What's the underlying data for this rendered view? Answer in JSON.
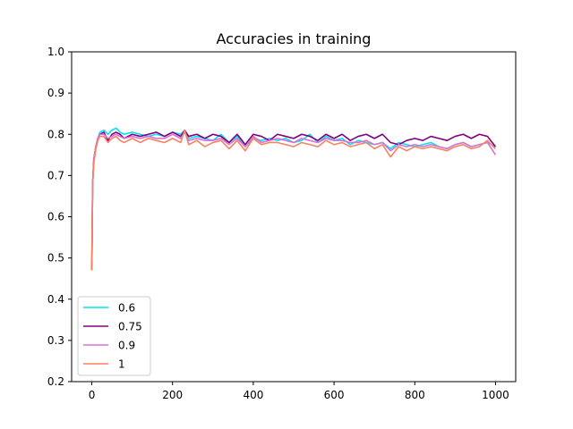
{
  "chart_data": {
    "type": "line",
    "title": "Accuracies in training",
    "xlabel": "",
    "ylabel": "",
    "xlim": [
      -50,
      1050
    ],
    "ylim": [
      0.2,
      1.0
    ],
    "xticks": [
      0,
      200,
      400,
      600,
      800,
      1000
    ],
    "xtick_labels": [
      "0",
      "200",
      "400",
      "600",
      "800",
      "1000"
    ],
    "yticks": [
      0.2,
      0.3,
      0.4,
      0.5,
      0.6,
      0.7,
      0.8,
      0.9,
      1.0
    ],
    "ytick_labels": [
      "0.2",
      "0.3",
      "0.4",
      "0.5",
      "0.6",
      "0.7",
      "0.8",
      "0.9",
      "1.0"
    ],
    "grid": false,
    "legend_position": "lower-left",
    "series": [
      {
        "name": "0.6",
        "color": "#00e5ee",
        "x": [
          0,
          2,
          5,
          10,
          15,
          20,
          30,
          40,
          50,
          60,
          70,
          80,
          100,
          120,
          140,
          160,
          180,
          200,
          220,
          230,
          240,
          260,
          280,
          300,
          320,
          340,
          360,
          380,
          400,
          420,
          440,
          460,
          480,
          500,
          520,
          540,
          560,
          580,
          600,
          620,
          640,
          660,
          680,
          700,
          720,
          740,
          760,
          780,
          800,
          820,
          840,
          860,
          880,
          900,
          920,
          940,
          960,
          980,
          1000
        ],
        "values": [
          0.47,
          0.68,
          0.74,
          0.77,
          0.79,
          0.805,
          0.81,
          0.8,
          0.81,
          0.815,
          0.805,
          0.8,
          0.805,
          0.8,
          0.795,
          0.8,
          0.795,
          0.805,
          0.8,
          0.81,
          0.79,
          0.795,
          0.79,
          0.785,
          0.8,
          0.78,
          0.795,
          0.77,
          0.79,
          0.785,
          0.79,
          0.785,
          0.79,
          0.78,
          0.785,
          0.8,
          0.78,
          0.795,
          0.785,
          0.79,
          0.775,
          0.785,
          0.78,
          0.775,
          0.78,
          0.765,
          0.78,
          0.775,
          0.77,
          0.775,
          0.78,
          0.77,
          0.765,
          0.775,
          0.78,
          0.77,
          0.775,
          0.78,
          0.77
        ]
      },
      {
        "name": "0.75",
        "color": "#800080",
        "x": [
          0,
          2,
          5,
          10,
          15,
          20,
          30,
          40,
          50,
          60,
          70,
          80,
          100,
          120,
          140,
          160,
          180,
          200,
          220,
          230,
          240,
          260,
          280,
          300,
          320,
          340,
          360,
          380,
          400,
          420,
          440,
          460,
          480,
          500,
          520,
          540,
          560,
          580,
          600,
          620,
          640,
          660,
          680,
          700,
          720,
          740,
          760,
          780,
          800,
          820,
          840,
          860,
          880,
          900,
          920,
          940,
          960,
          980,
          1000
        ],
        "values": [
          0.47,
          0.68,
          0.74,
          0.77,
          0.79,
          0.8,
          0.805,
          0.785,
          0.8,
          0.805,
          0.8,
          0.79,
          0.8,
          0.795,
          0.8,
          0.805,
          0.795,
          0.805,
          0.795,
          0.81,
          0.795,
          0.8,
          0.79,
          0.8,
          0.795,
          0.78,
          0.8,
          0.775,
          0.8,
          0.795,
          0.785,
          0.8,
          0.795,
          0.79,
          0.8,
          0.795,
          0.785,
          0.8,
          0.79,
          0.8,
          0.785,
          0.795,
          0.8,
          0.79,
          0.8,
          0.78,
          0.775,
          0.785,
          0.79,
          0.785,
          0.795,
          0.79,
          0.785,
          0.795,
          0.8,
          0.79,
          0.8,
          0.795,
          0.77
        ]
      },
      {
        "name": "0.9",
        "color": "#da70d6",
        "x": [
          0,
          2,
          5,
          10,
          15,
          20,
          30,
          40,
          50,
          60,
          70,
          80,
          100,
          120,
          140,
          160,
          180,
          200,
          220,
          230,
          240,
          260,
          280,
          300,
          320,
          340,
          360,
          380,
          400,
          420,
          440,
          460,
          480,
          500,
          520,
          540,
          560,
          580,
          600,
          620,
          640,
          660,
          680,
          700,
          720,
          740,
          760,
          780,
          800,
          820,
          840,
          860,
          880,
          900,
          920,
          940,
          960,
          980,
          1000
        ],
        "values": [
          0.47,
          0.68,
          0.74,
          0.77,
          0.79,
          0.8,
          0.8,
          0.79,
          0.795,
          0.8,
          0.795,
          0.79,
          0.795,
          0.79,
          0.795,
          0.79,
          0.79,
          0.8,
          0.79,
          0.805,
          0.785,
          0.79,
          0.785,
          0.785,
          0.79,
          0.775,
          0.79,
          0.77,
          0.795,
          0.78,
          0.785,
          0.79,
          0.785,
          0.78,
          0.79,
          0.785,
          0.78,
          0.79,
          0.785,
          0.785,
          0.78,
          0.78,
          0.785,
          0.775,
          0.78,
          0.76,
          0.775,
          0.77,
          0.775,
          0.77,
          0.775,
          0.77,
          0.765,
          0.775,
          0.78,
          0.77,
          0.775,
          0.78,
          0.75
        ]
      },
      {
        "name": "1",
        "color": "#fa8060",
        "x": [
          0,
          2,
          5,
          10,
          15,
          20,
          30,
          40,
          50,
          60,
          70,
          80,
          100,
          120,
          140,
          160,
          180,
          200,
          220,
          230,
          240,
          260,
          280,
          300,
          320,
          340,
          360,
          380,
          400,
          420,
          440,
          460,
          480,
          500,
          520,
          540,
          560,
          580,
          600,
          620,
          640,
          660,
          680,
          700,
          720,
          740,
          760,
          780,
          800,
          820,
          840,
          860,
          880,
          900,
          920,
          940,
          960,
          980,
          1000
        ],
        "values": [
          0.47,
          0.68,
          0.73,
          0.765,
          0.785,
          0.795,
          0.795,
          0.78,
          0.79,
          0.795,
          0.785,
          0.78,
          0.79,
          0.78,
          0.79,
          0.785,
          0.78,
          0.79,
          0.78,
          0.81,
          0.775,
          0.785,
          0.77,
          0.78,
          0.785,
          0.765,
          0.785,
          0.76,
          0.79,
          0.775,
          0.78,
          0.78,
          0.775,
          0.77,
          0.78,
          0.775,
          0.77,
          0.785,
          0.775,
          0.78,
          0.77,
          0.775,
          0.78,
          0.765,
          0.775,
          0.745,
          0.77,
          0.76,
          0.77,
          0.765,
          0.77,
          0.765,
          0.76,
          0.77,
          0.775,
          0.765,
          0.77,
          0.785,
          0.765
        ]
      }
    ]
  }
}
